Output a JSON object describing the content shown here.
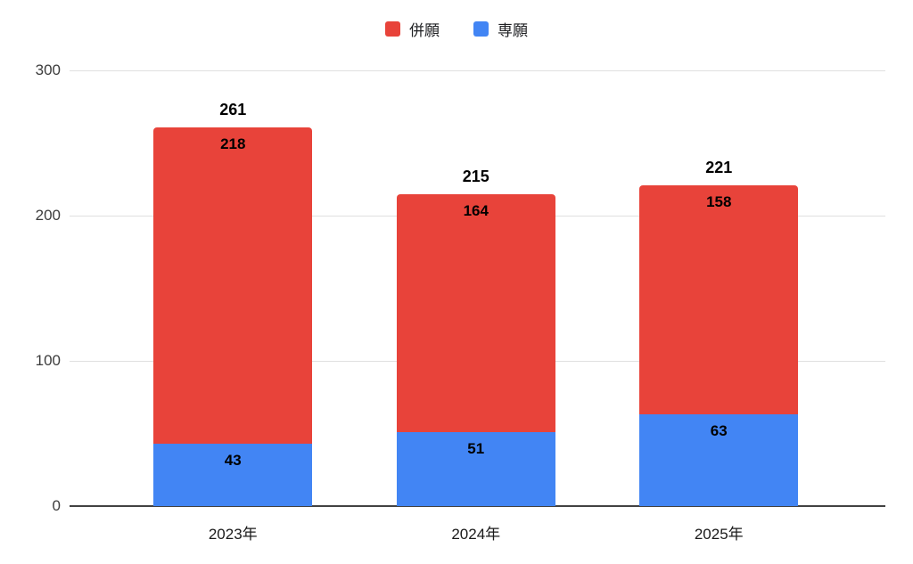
{
  "chart_data": {
    "type": "bar",
    "stacked": true,
    "title": "",
    "xlabel": "",
    "ylabel": "",
    "categories": [
      "2023年",
      "2024年",
      "2025年"
    ],
    "series": [
      {
        "name": "併願",
        "color": "#e8433a",
        "values": [
          218,
          164,
          158
        ]
      },
      {
        "name": "専願",
        "color": "#4285f4",
        "values": [
          43,
          51,
          63
        ]
      }
    ],
    "totals": [
      261,
      215,
      221
    ],
    "yticks": [
      0,
      100,
      200,
      300
    ],
    "ylim": [
      0,
      300
    ],
    "grid": true,
    "legend_position": "top",
    "colors": {
      "gridline": "#e0e0e0",
      "baseline": "#424242",
      "label": "#000000"
    }
  },
  "legend": {
    "items": [
      {
        "label": "併願",
        "color": "#e8433a"
      },
      {
        "label": "専願",
        "color": "#4285f4"
      }
    ]
  }
}
